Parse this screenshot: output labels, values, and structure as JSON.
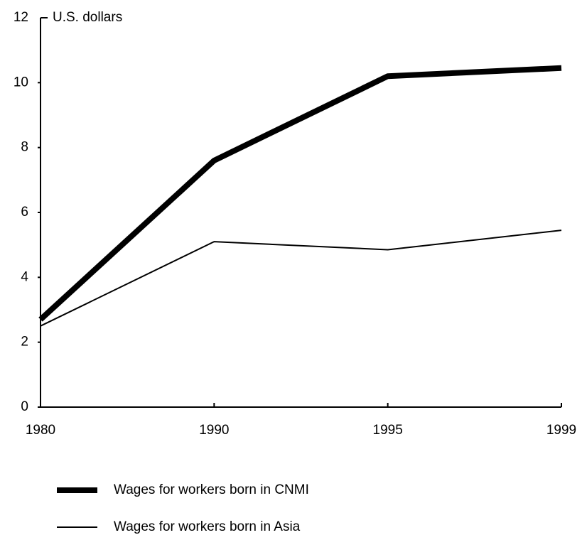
{
  "chart_data": {
    "type": "line",
    "y_axis_label": "U.S. dollars",
    "categories": [
      "1980",
      "1990",
      "1995",
      "1999"
    ],
    "series": [
      {
        "name": "Wages for workers born in CNMI",
        "color": "#000000",
        "line_width": 8,
        "values": [
          2.7,
          7.6,
          10.2,
          10.45
        ]
      },
      {
        "name": "Wages for workers born in Asia",
        "color": "#000000",
        "line_width": 2,
        "values": [
          2.5,
          5.1,
          4.85,
          5.45
        ]
      }
    ],
    "ylim": [
      0,
      12
    ],
    "yticks": [
      0,
      2,
      4,
      6,
      8,
      10,
      12
    ],
    "grid": false
  }
}
